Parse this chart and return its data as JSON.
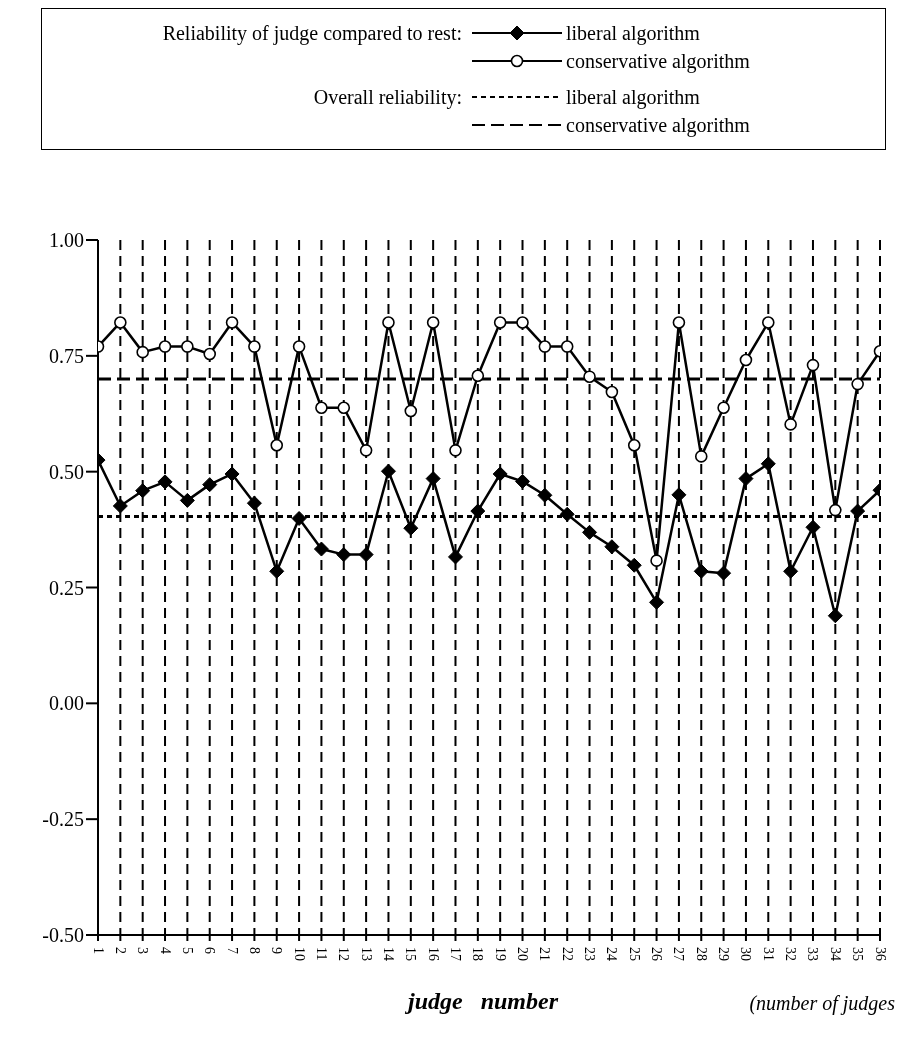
{
  "chart_data": {
    "type": "line",
    "xlabel": "judge   number",
    "legend_title": "Reliability of judge compared to rest:",
    "annotations": [
      "Overall reliability:",
      "(number of judges"
    ],
    "categories": [
      "1",
      "2",
      "3",
      "4",
      "5",
      "6",
      "7",
      "8",
      "9",
      "10",
      "11",
      "12",
      "13",
      "14",
      "15",
      "16",
      "17",
      "18",
      "19",
      "20",
      "21",
      "22",
      "23",
      "24",
      "25",
      "26",
      "27",
      "28",
      "29",
      "30",
      "31",
      "32",
      "33",
      "34",
      "35",
      "36"
    ],
    "series": [
      {
        "name": "liberal algorithm",
        "color": "#000000",
        "marker": "diamond",
        "values": [
          0.525,
          0.426,
          0.459,
          0.478,
          0.438,
          0.472,
          0.495,
          0.432,
          0.285,
          0.399,
          0.333,
          0.321,
          0.321,
          0.501,
          0.378,
          0.485,
          0.316,
          0.415,
          0.495,
          0.479,
          0.449,
          0.408,
          0.369,
          0.338,
          0.298,
          0.218,
          0.45,
          0.285,
          0.281,
          0.485,
          0.517,
          0.285,
          0.38,
          0.189,
          0.415,
          0.46
        ]
      },
      {
        "name": "conservative algorithm",
        "color": "#000000",
        "marker": "circle",
        "values": [
          0.77,
          0.822,
          0.758,
          0.77,
          0.77,
          0.754,
          0.822,
          0.77,
          0.557,
          0.77,
          0.638,
          0.638,
          0.546,
          0.822,
          0.631,
          0.822,
          0.546,
          0.707,
          0.822,
          0.822,
          0.77,
          0.77,
          0.705,
          0.672,
          0.557,
          0.308,
          0.822,
          0.533,
          0.638,
          0.741,
          0.822,
          0.602,
          0.73,
          0.417,
          0.689,
          0.76
        ]
      }
    ],
    "ref_lines": [
      {
        "axis": "y",
        "value": 0.403,
        "label": "liberal algorithm",
        "color": "#000000",
        "line_style": "dashed"
      },
      {
        "axis": "y",
        "value": 0.7,
        "label": "conservative algorithm",
        "color": "#000000",
        "line_style": "dashed"
      }
    ],
    "ylim": [
      -0.5,
      1
    ],
    "yticks": [
      {
        "value": -0.5,
        "label": "-0.50"
      },
      {
        "value": -0.25,
        "label": "-0.25"
      },
      {
        "value": 0,
        "label": "0.00"
      },
      {
        "value": 0.25,
        "label": "0.25"
      },
      {
        "value": 0.5,
        "label": "0.50"
      },
      {
        "value": 0.75,
        "label": "0.75"
      },
      {
        "value": 1,
        "label": "1.00"
      }
    ],
    "grid": "x",
    "legend": "top",
    "line_style": "solid"
  }
}
